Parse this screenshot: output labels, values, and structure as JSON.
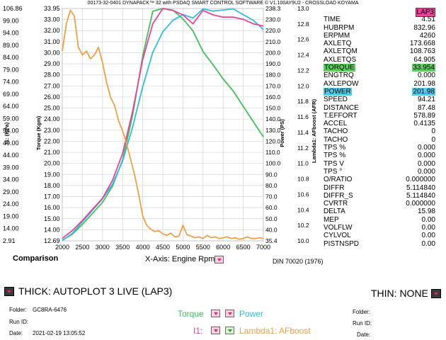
{
  "header": "00173-32-0401 DYNAPACK™ 32 with PSDAQ SMART CONTROL SOFTWARE © V1.100AY9U2 - CROSSLOAD KOYAMA",
  "chart_data": {
    "type": "line",
    "xlabel": "X-Axis: Engine Rpm",
    "xlim": [
      2000,
      7000
    ],
    "x_ticks": [
      "2000",
      "2500",
      "3000",
      "3500",
      "4000",
      "4500",
      "5000",
      "5500",
      "6000",
      "6500",
      "7000"
    ],
    "axes": {
      "i1": {
        "label": "I1: (KPa)",
        "ticks": [
          "2.91",
          "14.00",
          "19.00",
          "24.00",
          "29.00",
          "34.00",
          "39.00",
          "44.00",
          "49.00",
          "54.00",
          "59.00",
          "64.00",
          "69.00",
          "74.00",
          "79.00",
          "84.00",
          "89.00",
          "94.00",
          "99.00",
          "106.86"
        ]
      },
      "torque": {
        "label": "Torque (Kgm)",
        "ticks": [
          "12.69",
          "14.00",
          "15.00",
          "16.00",
          "17.00",
          "18.00",
          "19.00",
          "20.00",
          "21.00",
          "22.00",
          "23.00",
          "24.00",
          "25.00",
          "26.00",
          "27.00",
          "28.00",
          "29.00",
          "30.00",
          "31.00",
          "32.00",
          "33.00",
          "33.95"
        ]
      },
      "power": {
        "label": "Power (PS)",
        "ticks": [
          "35.4",
          "40.0",
          "50.0",
          "60.0",
          "70.0",
          "80.0",
          "90.0",
          "100.0",
          "110.0",
          "120.0",
          "130.0",
          "140.0",
          "150.0",
          "160.0",
          "170.0",
          "180.0",
          "190.0",
          "200.0",
          "210.0",
          "220.0",
          "230.0",
          "238.3"
        ]
      },
      "afr": {
        "label": "Lambda1: AFboost (AFR)",
        "ticks": [
          "10.0",
          "10.2",
          "10.4",
          "10.6",
          "10.8",
          "11.0",
          "11.2",
          "11.4",
          "11.6",
          "11.8",
          "12.0",
          "12.2",
          "12.4",
          "12.6",
          "12.8",
          "13.0"
        ]
      }
    },
    "series": [
      {
        "name": "Torque",
        "color": "#40bf58",
        "x": [
          2000,
          2250,
          2500,
          2750,
          3000,
          3250,
          3500,
          3750,
          4000,
          4250,
          4500,
          4750,
          5000,
          5250,
          5500,
          5750,
          6000,
          6250,
          6500,
          6750,
          7000
        ],
        "y": [
          12.75,
          13.3,
          14.2,
          15.2,
          16.2,
          17.7,
          20.1,
          24.2,
          29.6,
          33.7,
          33.95,
          33.8,
          33.0,
          31.9,
          30.0,
          28.8,
          27.5,
          26.4,
          25.0,
          23.6,
          22.2
        ]
      },
      {
        "name": "Power",
        "color": "#30bedf",
        "x": [
          2000,
          2250,
          2500,
          2750,
          3000,
          3250,
          3500,
          3750,
          4000,
          4250,
          4500,
          4750,
          5000,
          5250,
          5500,
          5750,
          6000,
          6250,
          6500,
          6750,
          7000
        ],
        "y": [
          35.6,
          42,
          52,
          62,
          72,
          85,
          105,
          135,
          170,
          200,
          218,
          228,
          233,
          230,
          238,
          236,
          237,
          238,
          233,
          228,
          220
        ]
      },
      {
        "name": "I1",
        "color": "#e8449c",
        "x": [
          2000,
          2250,
          2500,
          2750,
          3000,
          3250,
          3500,
          3750,
          4000,
          4250,
          4500,
          4750,
          5000,
          5250,
          5500,
          5750,
          6000,
          6250,
          6500,
          6750,
          7000
        ],
        "y": [
          4,
          7.5,
          12,
          17,
          22,
          30,
          42,
          61,
          84,
          100,
          106.86,
          106,
          104,
          100,
          106,
          104,
          103,
          103,
          102,
          100,
          99
        ]
      },
      {
        "name": "Lambda1: AFboost",
        "color": "#f0a048",
        "x": [
          2000,
          2100,
          2200,
          2300,
          2400,
          2500,
          2600,
          2700,
          2800,
          2900,
          3000,
          3100,
          3200,
          3300,
          3400,
          3500,
          3600,
          3700,
          3800,
          3900,
          4000,
          4100,
          4200,
          4300,
          4400,
          4500,
          4600,
          4700,
          4800,
          4900,
          5000,
          5100,
          5200,
          5300,
          5400,
          5500,
          5600,
          5700,
          5800,
          5900,
          6000,
          6100,
          6200,
          6300,
          6400,
          6500,
          6600,
          6700,
          6800,
          6900,
          7000
        ],
        "y": [
          12.45,
          12.8,
          12.98,
          12.9,
          12.5,
          12.4,
          12.45,
          12.35,
          12.4,
          12.5,
          12.3,
          12.05,
          11.85,
          11.75,
          11.55,
          11.42,
          11.25,
          11.05,
          10.85,
          10.6,
          10.32,
          10.2,
          10.15,
          10.12,
          10.13,
          10.09,
          10.07,
          10.1,
          10.05,
          10.06,
          10.2,
          10.08,
          10.06,
          10.04,
          10.05,
          10.03,
          10.07,
          10.04,
          10.05,
          10.03,
          10.04,
          10.05,
          10.03,
          10.04,
          10.02,
          10.03,
          10.05,
          10.03,
          10.03,
          10.04,
          10.03
        ]
      }
    ]
  },
  "readout": {
    "lap": "LAP3",
    "rows": [
      {
        "label": "TIME",
        "value": "4.51"
      },
      {
        "label": "HUBRPM",
        "value": "832.96"
      },
      {
        "label": "ERPMM",
        "value": "4260"
      },
      {
        "label": "AXLETQ",
        "value": "173.668"
      },
      {
        "label": "AXLETQM",
        "value": "108.763"
      },
      {
        "label": "AXLETQS",
        "value": "64.905"
      },
      {
        "label": "TORQUE",
        "value": "33.954",
        "hl": "#5fcc5f"
      },
      {
        "label": "ENGTRQ",
        "value": "0.000"
      },
      {
        "label": "AXLEPOW",
        "value": "201.98"
      },
      {
        "label": "POWER",
        "value": "201.98",
        "hl": "#55c8e8"
      },
      {
        "label": "SPEED",
        "value": "94.21"
      },
      {
        "label": "DISTANCE",
        "value": "87.48"
      },
      {
        "label": "T.EFFORT",
        "value": "578.89"
      },
      {
        "label": "ACCEL",
        "value": "0.4135"
      },
      {
        "label": "TACHO",
        "value": "0"
      },
      {
        "label": "TACHO",
        "value": "0"
      },
      {
        "label": "TPS %",
        "value": "0.000"
      },
      {
        "label": "TPS %",
        "value": "0.000"
      },
      {
        "label": "TPS V",
        "value": "0.000"
      },
      {
        "label": "TPS °",
        "value": "0.000"
      },
      {
        "label": "O/RATIO",
        "value": "0.000000"
      },
      {
        "label": "DIFFR",
        "value": "5.114840"
      },
      {
        "label": "DIFFR_S",
        "value": "5.114840"
      },
      {
        "label": "CVRTR",
        "value": "0.000000"
      },
      {
        "label": "DELTA",
        "value": "15.98"
      },
      {
        "label": "MEP",
        "value": "0.00"
      },
      {
        "label": "VOLFLW",
        "value": "0.00"
      },
      {
        "label": "CYLVOL",
        "value": "0.00"
      },
      {
        "label": "PISTNSPD",
        "value": "0.00"
      }
    ]
  },
  "footer": {
    "comparison": "Comparison",
    "din": "DIN 70020 (1976)",
    "thick": "THICK: AUTOPLOT 3 LIVE (LAP3)",
    "thin": "THIN: NONE",
    "folder_label": "Folder:",
    "folder": "GC8RA-6476",
    "runid_label": "Run ID:",
    "date_label": "Date:",
    "date": "2021-02-19 13:05:52",
    "torque": "Torque",
    "power": "Power",
    "i1": "I1:",
    "lambda": "Lambda1: AFboost",
    "thin_folder_label": "Folder:",
    "thin_runid_label": "Run ID:",
    "thin_date_label": "Date:",
    "colors": {
      "torque": "#40bf58",
      "power": "#30bedf",
      "i1": "#e8449c",
      "lambda": "#f0a048"
    }
  }
}
